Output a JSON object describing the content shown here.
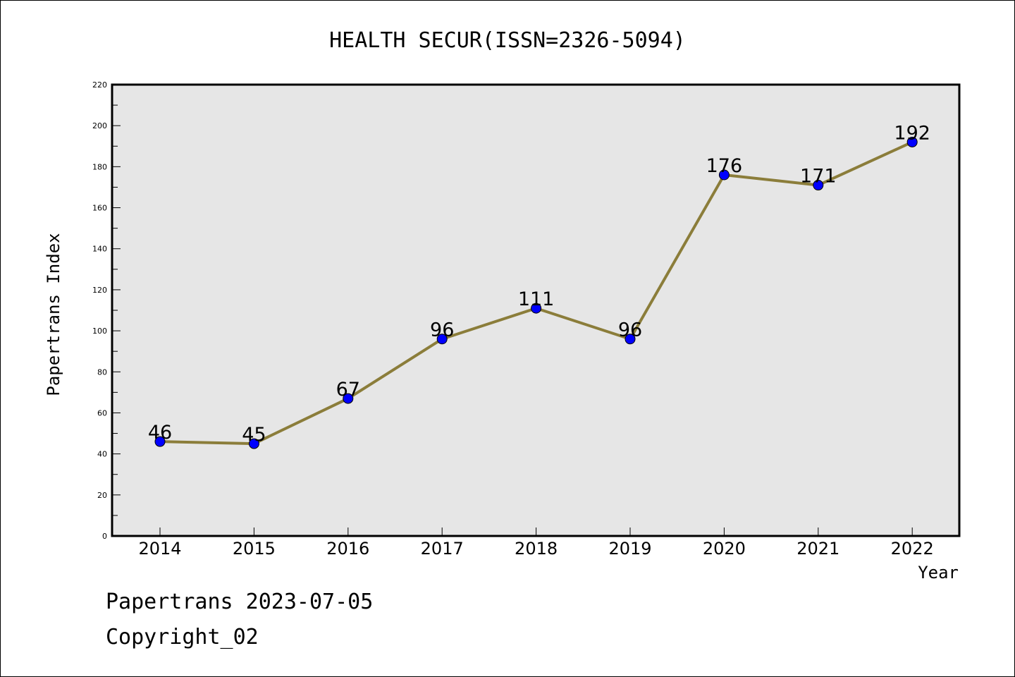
{
  "chart_data": {
    "type": "line",
    "title": "HEALTH SECUR(ISSN=2326-5094)",
    "xlabel": "Year",
    "ylabel": "Papertrans Index",
    "categories": [
      "2014",
      "2015",
      "2016",
      "2017",
      "2018",
      "2019",
      "2020",
      "2021",
      "2022"
    ],
    "values": [
      46,
      45,
      67,
      96,
      111,
      96,
      176,
      171,
      192
    ],
    "ylim": [
      0,
      220
    ],
    "yticks": [
      "0",
      "20",
      "40",
      "60",
      "80",
      "100",
      "120",
      "140",
      "160",
      "180",
      "200",
      "220"
    ],
    "grid": false,
    "colors": {
      "line": "#8b7d3a",
      "marker": "#0000ff",
      "plot_bg": "#e6e6e6"
    }
  },
  "footer": {
    "line1": "Papertrans 2023-07-05",
    "line2": "Copyright_02"
  }
}
